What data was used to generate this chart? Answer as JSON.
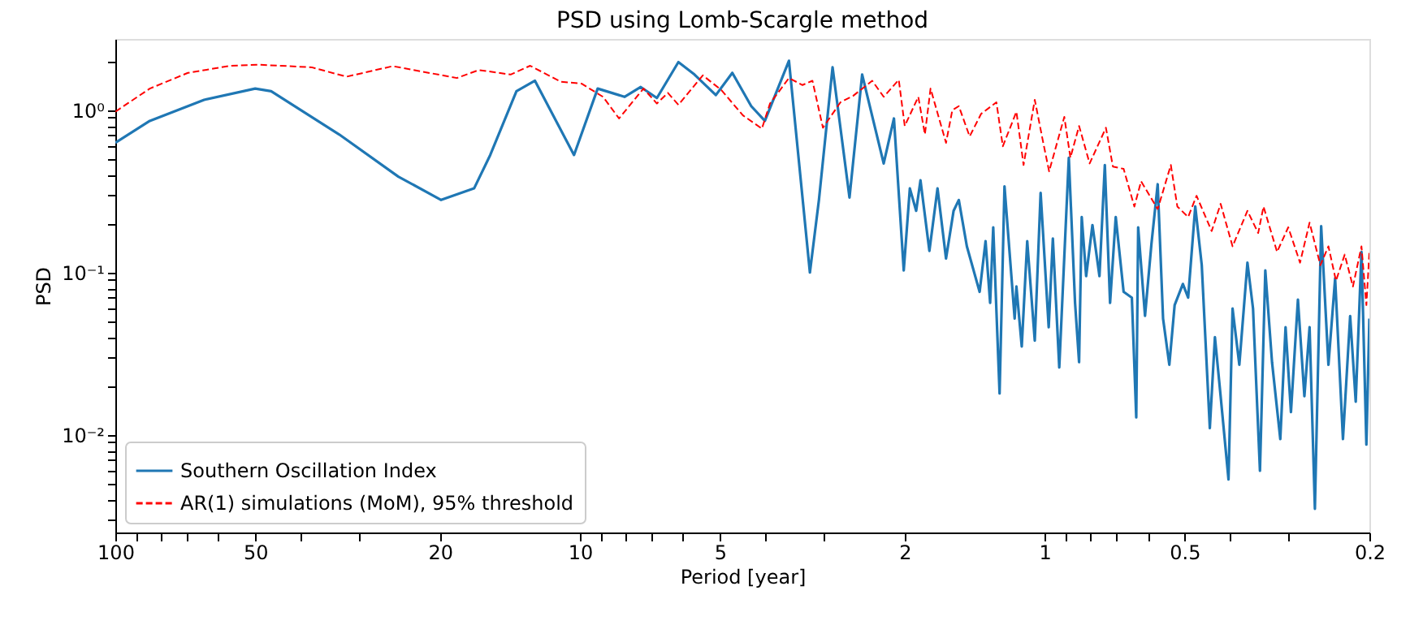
{
  "chart_data": {
    "type": "line",
    "title": "PSD using Lomb-Scargle method",
    "xlabel": "Period [year]",
    "ylabel": "PSD",
    "log": "xy",
    "grid": false,
    "legend": "bottom left",
    "xlim": [
      100,
      0.2
    ],
    "ylim": [
      0.0025,
      2.75
    ],
    "xticks": [
      100,
      {
        "value": 90,
        "label": null
      },
      {
        "value": 80,
        "label": null
      },
      {
        "value": 70,
        "label": null
      },
      {
        "value": 60,
        "label": null
      },
      50,
      {
        "value": 40,
        "label": null
      },
      {
        "value": 30,
        "label": null
      },
      20,
      10,
      {
        "value": 9,
        "label": null
      },
      {
        "value": 8,
        "label": null
      },
      {
        "value": 7,
        "label": null
      },
      {
        "value": 6,
        "label": null
      },
      5,
      {
        "value": 4,
        "label": null
      },
      {
        "value": 3,
        "label": null
      },
      2,
      1,
      {
        "value": 0.9,
        "label": null
      },
      {
        "value": 0.8,
        "label": null
      },
      {
        "value": 0.7,
        "label": null
      },
      {
        "value": 0.6,
        "label": null
      },
      0.5,
      {
        "value": 0.4,
        "label": null
      },
      {
        "value": 0.3,
        "label": null
      },
      0.2
    ],
    "yticks": [
      {
        "value": 0.003,
        "label": null
      },
      {
        "value": 0.004,
        "label": null
      },
      {
        "value": 0.005,
        "label": null
      },
      {
        "value": 0.006,
        "label": null
      },
      {
        "value": 0.007,
        "label": null
      },
      {
        "value": 0.008,
        "label": null
      },
      {
        "value": 0.009,
        "label": null
      },
      {
        "value": 0.01,
        "label": "10⁻²"
      },
      {
        "value": 0.02,
        "label": null
      },
      {
        "value": 0.03,
        "label": null
      },
      {
        "value": 0.04,
        "label": null
      },
      {
        "value": 0.05,
        "label": null
      },
      {
        "value": 0.06,
        "label": null
      },
      {
        "value": 0.07,
        "label": null
      },
      {
        "value": 0.08,
        "label": null
      },
      {
        "value": 0.09,
        "label": null
      },
      {
        "value": 0.1,
        "label": "10⁻¹"
      },
      {
        "value": 0.2,
        "label": null
      },
      {
        "value": 0.3,
        "label": null
      },
      {
        "value": 0.4,
        "label": null
      },
      {
        "value": 0.5,
        "label": null
      },
      {
        "value": 0.6,
        "label": null
      },
      {
        "value": 0.7,
        "label": null
      },
      {
        "value": 0.8,
        "label": null
      },
      {
        "value": 0.9,
        "label": null
      },
      {
        "value": 1,
        "label": "10⁰"
      },
      {
        "value": 2,
        "label": null
      }
    ],
    "series": [
      {
        "name": "Southern Oscillation Index",
        "color": "#1f77b4",
        "line_style": "solid",
        "x": [
          100,
          84.3,
          64.4,
          50,
          46.2,
          33,
          24.6,
          19.9,
          16.9,
          15.6,
          13.7,
          12.5,
          10.3,
          9.16,
          8.02,
          7.4,
          6.83,
          6.14,
          5.67,
          5.1,
          4.7,
          4.28,
          4.0,
          3.55,
          3.2,
          3.06,
          2.86,
          2.63,
          2.47,
          2.22,
          2.11,
          2.01,
          1.95,
          1.89,
          1.85,
          1.77,
          1.7,
          1.63,
          1.57,
          1.53,
          1.47,
          1.38,
          1.34,
          1.31,
          1.29,
          1.25,
          1.22,
          1.16,
          1.15,
          1.12,
          1.09,
          1.05,
          1.02,
          0.98,
          0.96,
          0.93,
          0.887,
          0.86,
          0.843,
          0.832,
          0.814,
          0.789,
          0.762,
          0.742,
          0.723,
          0.703,
          0.676,
          0.649,
          0.635,
          0.629,
          0.608,
          0.589,
          0.571,
          0.556,
          0.539,
          0.525,
          0.504,
          0.491,
          0.474,
          0.459,
          0.441,
          0.43,
          0.418,
          0.402,
          0.394,
          0.381,
          0.366,
          0.356,
          0.344,
          0.335,
          0.324,
          0.311,
          0.303,
          0.295,
          0.285,
          0.276,
          0.269,
          0.262,
          0.254,
          0.245,
          0.237,
          0.228,
          0.22,
          0.214,
          0.208,
          0.203,
          0.2
        ],
        "values": [
          0.63,
          0.86,
          1.16,
          1.36,
          1.31,
          0.71,
          0.39,
          0.28,
          0.33,
          0.53,
          1.31,
          1.52,
          0.53,
          1.36,
          1.21,
          1.39,
          1.19,
          1.98,
          1.66,
          1.24,
          1.7,
          1.06,
          0.86,
          2.02,
          0.1,
          0.28,
          1.84,
          0.29,
          1.66,
          0.47,
          0.89,
          0.103,
          0.33,
          0.24,
          0.37,
          0.136,
          0.33,
          0.122,
          0.24,
          0.28,
          0.145,
          0.076,
          0.156,
          0.065,
          0.19,
          0.018,
          0.34,
          0.052,
          0.082,
          0.035,
          0.156,
          0.038,
          0.31,
          0.046,
          0.162,
          0.026,
          0.51,
          0.065,
          0.028,
          0.22,
          0.095,
          0.196,
          0.095,
          0.46,
          0.065,
          0.22,
          0.076,
          0.07,
          0.0128,
          0.19,
          0.054,
          0.15,
          0.35,
          0.052,
          0.027,
          0.063,
          0.085,
          0.07,
          0.255,
          0.111,
          0.011,
          0.04,
          0.0173,
          0.0053,
          0.06,
          0.027,
          0.115,
          0.06,
          0.006,
          0.103,
          0.028,
          0.0094,
          0.046,
          0.0138,
          0.068,
          0.0173,
          0.046,
          0.0035,
          0.193,
          0.027,
          0.092,
          0.0094,
          0.054,
          0.016,
          0.134,
          0.0087,
          0.052
        ]
      },
      {
        "name": "AR(1) simulations (MoM), 95% threshold",
        "color": "#ff0000",
        "line_style": "dashed",
        "x": [
          100,
          84.3,
          69.8,
          56.5,
          49.3,
          37.8,
          31.8,
          25.3,
          22.1,
          18.4,
          16.5,
          14.1,
          12.8,
          11.0,
          9.93,
          8.92,
          8.24,
          7.3,
          6.83,
          6.47,
          6.14,
          5.44,
          4.96,
          4.46,
          4.06,
          3.9,
          3.55,
          3.32,
          3.16,
          3.0,
          2.75,
          2.58,
          2.35,
          2.22,
          2.06,
          2.0,
          1.87,
          1.81,
          1.76,
          1.63,
          1.58,
          1.53,
          1.45,
          1.37,
          1.27,
          1.23,
          1.15,
          1.11,
          1.05,
          1.01,
          0.978,
          0.907,
          0.88,
          0.843,
          0.8,
          0.738,
          0.713,
          0.676,
          0.641,
          0.62,
          0.571,
          0.535,
          0.518,
          0.491,
          0.471,
          0.437,
          0.418,
          0.394,
          0.366,
          0.347,
          0.338,
          0.316,
          0.299,
          0.282,
          0.269,
          0.255,
          0.245,
          0.236,
          0.226,
          0.217,
          0.208,
          0.203,
          0.2
        ],
        "values": [
          0.98,
          1.36,
          1.7,
          1.88,
          1.91,
          1.84,
          1.61,
          1.87,
          1.74,
          1.58,
          1.77,
          1.66,
          1.88,
          1.5,
          1.46,
          1.21,
          0.89,
          1.36,
          1.1,
          1.28,
          1.08,
          1.64,
          1.33,
          0.93,
          0.77,
          1.1,
          1.58,
          1.43,
          1.52,
          0.78,
          1.12,
          1.23,
          1.52,
          1.21,
          1.54,
          0.8,
          1.21,
          0.71,
          1.36,
          0.63,
          1.0,
          1.06,
          0.69,
          0.95,
          1.12,
          0.6,
          0.98,
          0.46,
          1.16,
          0.66,
          0.42,
          0.91,
          0.51,
          0.8,
          0.47,
          0.78,
          0.45,
          0.435,
          0.255,
          0.365,
          0.246,
          0.46,
          0.255,
          0.22,
          0.297,
          0.18,
          0.265,
          0.145,
          0.24,
          0.175,
          0.255,
          0.134,
          0.19,
          0.115,
          0.203,
          0.111,
          0.145,
          0.089,
          0.129,
          0.082,
          0.145,
          0.063,
          0.134
        ]
      }
    ]
  }
}
